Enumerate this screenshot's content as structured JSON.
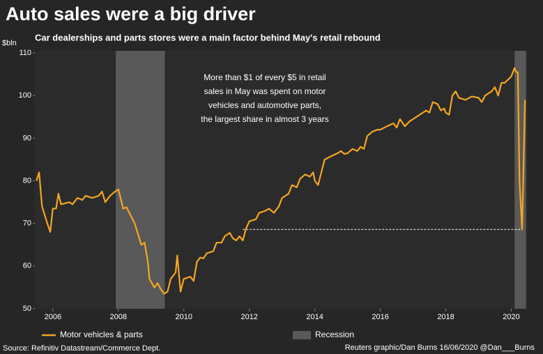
{
  "chart_data": {
    "type": "line",
    "title": "Auto sales were a big driver",
    "subtitle": "Car dealerships and parts stores were a main factor behind May's retail rebound",
    "y_axis_label": "$bln",
    "x": [
      2005.5,
      2005.58,
      2005.67,
      2005.83,
      2005.92,
      2006.0,
      2006.1,
      2006.17,
      2006.25,
      2006.5,
      2006.6,
      2006.75,
      2006.9,
      2007.0,
      2007.2,
      2007.4,
      2007.5,
      2007.6,
      2007.75,
      2007.9,
      2008.0,
      2008.15,
      2008.25,
      2008.4,
      2008.5,
      2008.6,
      2008.7,
      2008.8,
      2008.9,
      2008.95,
      2009.1,
      2009.2,
      2009.3,
      2009.4,
      2009.5,
      2009.6,
      2009.75,
      2009.8,
      2009.9,
      2010.0,
      2010.2,
      2010.3,
      2010.4,
      2010.5,
      2010.6,
      2010.7,
      2010.9,
      2011.0,
      2011.15,
      2011.25,
      2011.4,
      2011.5,
      2011.6,
      2011.7,
      2011.8,
      2011.9,
      2012.0,
      2012.2,
      2012.3,
      2012.5,
      2012.6,
      2012.75,
      2012.9,
      2013.0,
      2013.2,
      2013.3,
      2013.45,
      2013.55,
      2013.7,
      2013.85,
      2013.95,
      2014.0,
      2014.1,
      2014.2,
      2014.3,
      2014.5,
      2014.7,
      2014.8,
      2014.9,
      2015.0,
      2015.15,
      2015.3,
      2015.4,
      2015.5,
      2015.6,
      2015.75,
      2015.9,
      2016.0,
      2016.2,
      2016.4,
      2016.5,
      2016.6,
      2016.75,
      2016.9,
      2017.0,
      2017.2,
      2017.4,
      2017.5,
      2017.6,
      2017.75,
      2017.85,
      2017.95,
      2018.0,
      2018.1,
      2018.2,
      2018.3,
      2018.4,
      2018.6,
      2018.8,
      2019.0,
      2019.1,
      2019.2,
      2019.4,
      2019.5,
      2019.6,
      2019.7,
      2019.8,
      2020.0,
      2020.1,
      2020.15,
      2020.2,
      2020.25,
      2020.33,
      2020.42
    ],
    "series": [
      {
        "name": "Motor vehicles & parts",
        "color": "#f5a623",
        "values": [
          80,
          82,
          74,
          70,
          68,
          73.5,
          73.5,
          77,
          74.5,
          75,
          74.5,
          76,
          75.5,
          76.5,
          76,
          76.5,
          77.5,
          75,
          76.5,
          77.5,
          78,
          73.5,
          73.8,
          71.5,
          70,
          67.5,
          65,
          65.5,
          61,
          57,
          55,
          56,
          54.5,
          53.5,
          54,
          57,
          58.5,
          62.5,
          54,
          57,
          57.5,
          56.5,
          61,
          62,
          61.8,
          63,
          63.5,
          65.5,
          65.5,
          67,
          67.8,
          66.5,
          66,
          67,
          66,
          68.8,
          70.5,
          71,
          72.5,
          73,
          73.5,
          72.5,
          74,
          76,
          77,
          79,
          78.5,
          80.5,
          81.5,
          81,
          82,
          80,
          79,
          82,
          85,
          85.8,
          86.5,
          87,
          86.3,
          86.5,
          87.5,
          87,
          88,
          87.5,
          90.5,
          91.5,
          92,
          92,
          92.8,
          93.5,
          92.5,
          94.5,
          92.8,
          94,
          94.5,
          95.5,
          96.5,
          96,
          98.5,
          98,
          96.5,
          97,
          96,
          95.5,
          100,
          101,
          99.5,
          99,
          99.8,
          99.5,
          98.5,
          100,
          101,
          102,
          100,
          103,
          103,
          104.5,
          106.5,
          105.5,
          105.5,
          80,
          68.6,
          99
        ]
      }
    ],
    "recession_name": "Recession",
    "recession_color": "#595959",
    "recessions": [
      [
        2007.92,
        2009.42
      ],
      [
        2020.1,
        2020.45
      ]
    ],
    "reference_line": {
      "value": 68.6,
      "x": [
        2011.8,
        2020.33
      ]
    },
    "annotation": [
      "More than $1 of every $5 in retail",
      "sales in May was spent on motor",
      "vehicles and automotive parts,",
      "the largest share in almost 3 years"
    ],
    "xlim": [
      2005.45,
      2020.5
    ],
    "ylim": [
      50,
      110.5
    ],
    "xticks": [
      2006,
      2008,
      2010,
      2012,
      2014,
      2016,
      2018,
      2020
    ],
    "yticks": [
      50,
      60,
      70,
      80,
      90,
      100,
      110
    ],
    "grid": false,
    "source": "Source: Refinitiv Datastream/Commerce Dept.",
    "credit": "Reuters graphic/Dan Burns 16/06/2020 @Dan___Burns"
  }
}
